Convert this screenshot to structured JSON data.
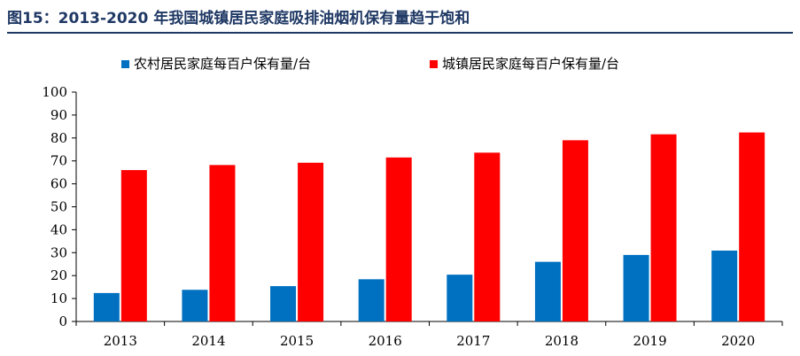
{
  "figure_title": "图15：2013-2020 年我国城镇居民家庭吸排油烟机保有量趋于饱和",
  "colors": {
    "title": "#1f3864",
    "rural": "#0070c0",
    "urban": "#ff0000",
    "axis": "#000000"
  },
  "chart_data": {
    "type": "bar",
    "categories": [
      "2013",
      "2014",
      "2015",
      "2016",
      "2017",
      "2018",
      "2019",
      "2020"
    ],
    "series": [
      {
        "name": "农村居民家庭每百户保有量/台",
        "values": [
          12.4,
          13.8,
          15.4,
          18.4,
          20.4,
          26.0,
          29.0,
          30.9
        ]
      },
      {
        "name": "城镇居民家庭每百户保有量/台",
        "values": [
          66.0,
          68.2,
          69.2,
          71.5,
          73.6,
          79.0,
          81.6,
          82.4
        ]
      }
    ],
    "ylim": [
      0,
      100
    ],
    "yticks": [
      "0",
      "10",
      "20",
      "30",
      "40",
      "50",
      "60",
      "70",
      "80",
      "90",
      "100"
    ],
    "legend_position": "top",
    "grid": false
  }
}
